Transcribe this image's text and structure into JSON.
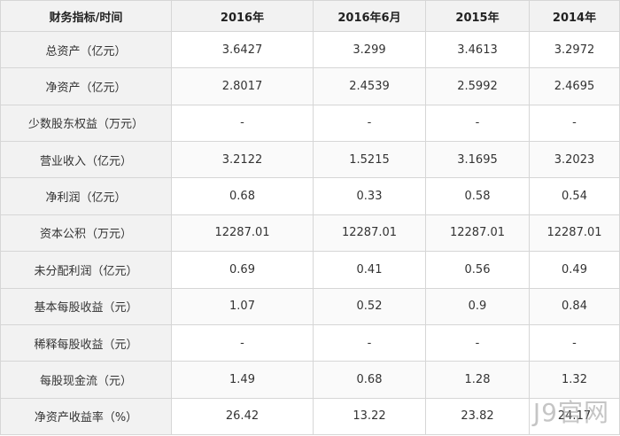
{
  "table": {
    "headers": [
      "财务指标/时间",
      "2016年",
      "2016年6月",
      "2015年",
      "2014年"
    ],
    "rows": [
      {
        "label": "总资产（亿元）",
        "values": [
          "3.6427",
          "3.299",
          "3.4613",
          "3.2972"
        ]
      },
      {
        "label": "净资产（亿元）",
        "values": [
          "2.8017",
          "2.4539",
          "2.5992",
          "2.4695"
        ]
      },
      {
        "label": "少数股东权益（万元）",
        "values": [
          "-",
          "-",
          "-",
          "-"
        ]
      },
      {
        "label": "营业收入（亿元）",
        "values": [
          "3.2122",
          "1.5215",
          "3.1695",
          "3.2023"
        ]
      },
      {
        "label": "净利润（亿元）",
        "values": [
          "0.68",
          "0.33",
          "0.58",
          "0.54"
        ]
      },
      {
        "label": "资本公积（万元）",
        "values": [
          "12287.01",
          "12287.01",
          "12287.01",
          "12287.01"
        ]
      },
      {
        "label": "未分配利润（亿元）",
        "values": [
          "0.69",
          "0.41",
          "0.56",
          "0.49"
        ]
      },
      {
        "label": "基本每股收益（元）",
        "values": [
          "1.07",
          "0.52",
          "0.9",
          "0.84"
        ]
      },
      {
        "label": "稀释每股收益（元）",
        "values": [
          "-",
          "-",
          "-",
          "-"
        ]
      },
      {
        "label": "每股现金流（元）",
        "values": [
          "1.49",
          "0.68",
          "1.28",
          "1.32"
        ]
      },
      {
        "label": "净资产收益率（%）",
        "values": [
          "26.42",
          "13.22",
          "23.82",
          "24.17"
        ]
      }
    ]
  },
  "watermark": "J9官网"
}
